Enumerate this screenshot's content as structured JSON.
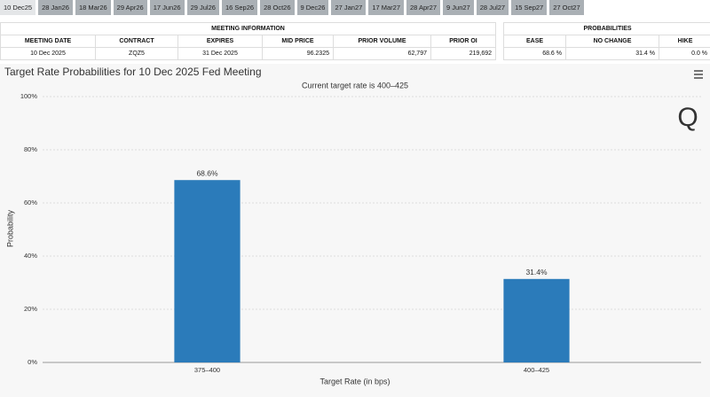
{
  "tabs": [
    "10 Dec25",
    "28 Jan26",
    "18 Mar26",
    "29 Apr26",
    "17 Jun26",
    "29 Jul26",
    "16 Sep26",
    "28 Oct26",
    "9 Dec26",
    "27 Jan27",
    "17 Mar27",
    "28 Apr27",
    "9 Jun27",
    "28 Jul27",
    "15 Sep27",
    "27 Oct27"
  ],
  "meeting_table": {
    "title": "MEETING INFORMATION",
    "columns": [
      "MEETING DATE",
      "CONTRACT",
      "EXPIRES",
      "MID PRICE",
      "PRIOR VOLUME",
      "PRIOR OI"
    ],
    "rows": [
      [
        "10 Dec 2025",
        "ZQZ5",
        "31 Dec 2025",
        "96.2325",
        "62,797",
        "219,692"
      ]
    ]
  },
  "probability_table": {
    "title": "PROBABILITIES",
    "columns": [
      "EASE",
      "NO CHANGE",
      "HIKE"
    ],
    "rows": [
      [
        "68.6 %",
        "31.4 %",
        "0.0 %"
      ]
    ]
  },
  "chart_data": {
    "type": "bar",
    "title": "Target Rate Probabilities for 10 Dec 2025 Fed Meeting",
    "subtitle": "Current target rate is 400–425",
    "x_label": "Target Rate (in bps)",
    "y_label": "Probability",
    "categories": [
      "375–400",
      "400–425"
    ],
    "values": [
      68.6,
      31.4
    ],
    "value_labels": [
      "68.6%",
      "31.4%"
    ],
    "color": "#2b7bba",
    "ylim": [
      0,
      100
    ],
    "yticks": [
      {
        "value": 0,
        "label": "0%"
      },
      {
        "value": 20,
        "label": "20%"
      },
      {
        "value": 40,
        "label": "40%"
      },
      {
        "value": 60,
        "label": "60%"
      },
      {
        "value": 80,
        "label": "80%"
      },
      {
        "value": 100,
        "label": "100%"
      }
    ],
    "grid": true
  }
}
